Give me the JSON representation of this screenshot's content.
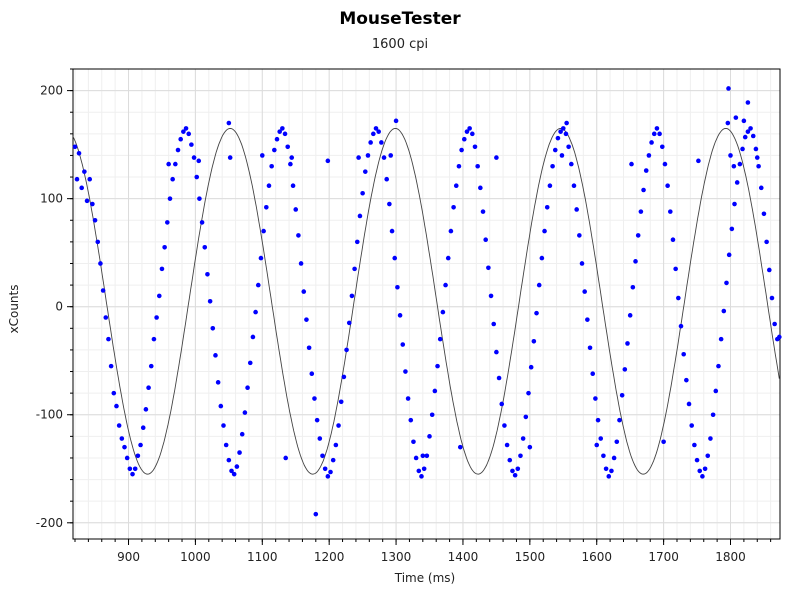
{
  "chart_data": {
    "type": "scatter",
    "title": "MouseTester",
    "subtitle": "1600 cpi",
    "xlabel": "Time (ms)",
    "ylabel": "xCounts",
    "xlim": [
      817,
      1874
    ],
    "ylim": [
      -215,
      220
    ],
    "x_ticks": [
      900,
      1000,
      1100,
      1200,
      1300,
      1400,
      1500,
      1600,
      1700,
      1800
    ],
    "y_ticks": [
      200,
      100,
      0,
      -100,
      -200
    ],
    "grid": true,
    "series": [
      {
        "kind": "points",
        "color": "#0000ff",
        "points": [
          [
            820,
            148
          ],
          [
            823,
            118
          ],
          [
            826,
            142
          ],
          [
            830,
            110
          ],
          [
            834,
            125
          ],
          [
            838,
            98
          ],
          [
            842,
            118
          ],
          [
            846,
            95
          ],
          [
            850,
            80
          ],
          [
            854,
            60
          ],
          [
            858,
            40
          ],
          [
            862,
            15
          ],
          [
            866,
            -10
          ],
          [
            870,
            -30
          ],
          [
            874,
            -55
          ],
          [
            878,
            -80
          ],
          [
            882,
            -92
          ],
          [
            886,
            -110
          ],
          [
            890,
            -122
          ],
          [
            894,
            -130
          ],
          [
            898,
            -140
          ],
          [
            902,
            -150
          ],
          [
            906,
            -155
          ],
          [
            910,
            -150
          ],
          [
            914,
            -138
          ],
          [
            918,
            -128
          ],
          [
            922,
            -112
          ],
          [
            926,
            -95
          ],
          [
            930,
            -75
          ],
          [
            934,
            -55
          ],
          [
            938,
            -30
          ],
          [
            942,
            -10
          ],
          [
            946,
            10
          ],
          [
            950,
            35
          ],
          [
            954,
            55
          ],
          [
            958,
            78
          ],
          [
            962,
            100
          ],
          [
            966,
            118
          ],
          [
            970,
            132
          ],
          [
            974,
            145
          ],
          [
            978,
            155
          ],
          [
            982,
            162
          ],
          [
            986,
            165
          ],
          [
            990,
            160
          ],
          [
            994,
            150
          ],
          [
            998,
            138
          ],
          [
            1002,
            120
          ],
          [
            1006,
            100
          ],
          [
            1010,
            78
          ],
          [
            1014,
            55
          ],
          [
            1018,
            30
          ],
          [
            1022,
            5
          ],
          [
            1026,
            -20
          ],
          [
            1030,
            -45
          ],
          [
            1034,
            -70
          ],
          [
            1038,
            -92
          ],
          [
            1042,
            -110
          ],
          [
            1046,
            -128
          ],
          [
            1050,
            -142
          ],
          [
            1054,
            -152
          ],
          [
            1058,
            -155
          ],
          [
            1062,
            -148
          ],
          [
            1066,
            -135
          ],
          [
            1070,
            -118
          ],
          [
            1074,
            -98
          ],
          [
            1078,
            -75
          ],
          [
            1082,
            -52
          ],
          [
            1086,
            -28
          ],
          [
            1090,
            -5
          ],
          [
            1094,
            20
          ],
          [
            1098,
            45
          ],
          [
            1102,
            70
          ],
          [
            1106,
            92
          ],
          [
            1110,
            112
          ],
          [
            1114,
            130
          ],
          [
            1118,
            145
          ],
          [
            1122,
            155
          ],
          [
            1126,
            162
          ],
          [
            1130,
            165
          ],
          [
            1134,
            160
          ],
          [
            1138,
            148
          ],
          [
            1142,
            132
          ],
          [
            1146,
            112
          ],
          [
            1150,
            90
          ],
          [
            1154,
            66
          ],
          [
            1158,
            40
          ],
          [
            1162,
            14
          ],
          [
            1166,
            -12
          ],
          [
            1170,
            -38
          ],
          [
            1174,
            -62
          ],
          [
            1178,
            -85
          ],
          [
            1182,
            -105
          ],
          [
            1186,
            -122
          ],
          [
            1190,
            -138
          ],
          [
            1194,
            -150
          ],
          [
            1198,
            -157
          ],
          [
            1202,
            -153
          ],
          [
            1206,
            -142
          ],
          [
            1210,
            -128
          ],
          [
            1214,
            -110
          ],
          [
            1218,
            -88
          ],
          [
            1222,
            -65
          ],
          [
            1226,
            -40
          ],
          [
            1230,
            -15
          ],
          [
            1234,
            10
          ],
          [
            1238,
            35
          ],
          [
            1242,
            60
          ],
          [
            1246,
            84
          ],
          [
            1250,
            105
          ],
          [
            1254,
            125
          ],
          [
            1258,
            140
          ],
          [
            1262,
            152
          ],
          [
            1266,
            160
          ],
          [
            1270,
            165
          ],
          [
            1274,
            162
          ],
          [
            1278,
            152
          ],
          [
            1282,
            138
          ],
          [
            1286,
            118
          ],
          [
            1290,
            95
          ],
          [
            1294,
            70
          ],
          [
            1298,
            45
          ],
          [
            1302,
            18
          ],
          [
            1306,
            -8
          ],
          [
            1310,
            -35
          ],
          [
            1314,
            -60
          ],
          [
            1318,
            -85
          ],
          [
            1322,
            -105
          ],
          [
            1326,
            -125
          ],
          [
            1330,
            -140
          ],
          [
            1334,
            -152
          ],
          [
            1338,
            -157
          ],
          [
            1342,
            -150
          ],
          [
            1346,
            -138
          ],
          [
            1350,
            -120
          ],
          [
            1354,
            -100
          ],
          [
            1358,
            -78
          ],
          [
            1362,
            -55
          ],
          [
            1366,
            -30
          ],
          [
            1370,
            -5
          ],
          [
            1374,
            20
          ],
          [
            1378,
            45
          ],
          [
            1382,
            70
          ],
          [
            1386,
            92
          ],
          [
            1390,
            112
          ],
          [
            1394,
            130
          ],
          [
            1398,
            145
          ],
          [
            1402,
            155
          ],
          [
            1406,
            162
          ],
          [
            1410,
            165
          ],
          [
            1414,
            160
          ],
          [
            1418,
            148
          ],
          [
            1422,
            130
          ],
          [
            1426,
            110
          ],
          [
            1430,
            88
          ],
          [
            1434,
            62
          ],
          [
            1438,
            36
          ],
          [
            1442,
            10
          ],
          [
            1446,
            -16
          ],
          [
            1450,
            -42
          ],
          [
            1454,
            -66
          ],
          [
            1458,
            -90
          ],
          [
            1462,
            -110
          ],
          [
            1466,
            -128
          ],
          [
            1470,
            -142
          ],
          [
            1474,
            -152
          ],
          [
            1478,
            -156
          ],
          [
            1482,
            -150
          ],
          [
            1486,
            -138
          ],
          [
            1490,
            -122
          ],
          [
            1494,
            -102
          ],
          [
            1498,
            -80
          ],
          [
            1502,
            -56
          ],
          [
            1506,
            -32
          ],
          [
            1510,
            -6
          ],
          [
            1514,
            20
          ],
          [
            1518,
            45
          ],
          [
            1522,
            70
          ],
          [
            1526,
            92
          ],
          [
            1530,
            112
          ],
          [
            1534,
            130
          ],
          [
            1538,
            145
          ],
          [
            1542,
            156
          ],
          [
            1546,
            162
          ],
          [
            1550,
            165
          ],
          [
            1554,
            160
          ],
          [
            1558,
            148
          ],
          [
            1562,
            132
          ],
          [
            1566,
            112
          ],
          [
            1570,
            90
          ],
          [
            1574,
            66
          ],
          [
            1578,
            40
          ],
          [
            1582,
            14
          ],
          [
            1586,
            -12
          ],
          [
            1590,
            -38
          ],
          [
            1594,
            -62
          ],
          [
            1598,
            -85
          ],
          [
            1602,
            -105
          ],
          [
            1606,
            -122
          ],
          [
            1610,
            -138
          ],
          [
            1614,
            -150
          ],
          [
            1618,
            -157
          ],
          [
            1622,
            -152
          ],
          [
            1626,
            -140
          ],
          [
            1630,
            -125
          ],
          [
            1634,
            -105
          ],
          [
            1638,
            -82
          ],
          [
            1642,
            -58
          ],
          [
            1646,
            -34
          ],
          [
            1650,
            -8
          ],
          [
            1654,
            18
          ],
          [
            1658,
            42
          ],
          [
            1662,
            66
          ],
          [
            1666,
            88
          ],
          [
            1670,
            108
          ],
          [
            1674,
            126
          ],
          [
            1678,
            140
          ],
          [
            1682,
            152
          ],
          [
            1686,
            160
          ],
          [
            1690,
            165
          ],
          [
            1694,
            160
          ],
          [
            1698,
            148
          ],
          [
            1702,
            132
          ],
          [
            1706,
            112
          ],
          [
            1710,
            88
          ],
          [
            1714,
            62
          ],
          [
            1718,
            35
          ],
          [
            1722,
            8
          ],
          [
            1726,
            -18
          ],
          [
            1730,
            -44
          ],
          [
            1734,
            -68
          ],
          [
            1738,
            -90
          ],
          [
            1742,
            -110
          ],
          [
            1746,
            -128
          ],
          [
            1750,
            -142
          ],
          [
            1754,
            -152
          ],
          [
            1758,
            -157
          ],
          [
            1762,
            -150
          ],
          [
            1766,
            -138
          ],
          [
            1770,
            -122
          ],
          [
            1774,
            -100
          ],
          [
            1778,
            -78
          ],
          [
            1782,
            -55
          ],
          [
            1786,
            -30
          ],
          [
            1790,
            -4
          ],
          [
            1794,
            22
          ],
          [
            1798,
            48
          ],
          [
            1802,
            72
          ],
          [
            1806,
            95
          ],
          [
            1810,
            115
          ],
          [
            1814,
            132
          ],
          [
            1818,
            146
          ],
          [
            1822,
            157
          ],
          [
            1826,
            162
          ],
          [
            1830,
            165
          ],
          [
            1834,
            158
          ],
          [
            1838,
            146
          ],
          [
            1842,
            130
          ],
          [
            1846,
            110
          ],
          [
            1850,
            86
          ],
          [
            1854,
            60
          ],
          [
            1858,
            34
          ],
          [
            1862,
            8
          ],
          [
            1866,
            -16
          ],
          [
            1870,
            -30
          ],
          [
            1873,
            -28
          ],
          [
            960,
            132
          ],
          [
            1005,
            135
          ],
          [
            1052,
            138
          ],
          [
            1100,
            140
          ],
          [
            1144,
            138
          ],
          [
            1198,
            135
          ],
          [
            1244,
            138
          ],
          [
            1292,
            140
          ],
          [
            1340,
            -138
          ],
          [
            1396,
            -130
          ],
          [
            1450,
            138
          ],
          [
            1500,
            -130
          ],
          [
            1548,
            140
          ],
          [
            1600,
            -128
          ],
          [
            1652,
            132
          ],
          [
            1700,
            -125
          ],
          [
            1752,
            135
          ],
          [
            1800,
            140
          ],
          [
            1805,
            130
          ],
          [
            1840,
            138
          ],
          [
            1180,
            -192
          ],
          [
            1135,
            -140
          ],
          [
            1797,
            202
          ],
          [
            1826,
            189
          ],
          [
            1808,
            175
          ],
          [
            1820,
            172
          ],
          [
            1050,
            170
          ],
          [
            1300,
            172
          ],
          [
            1555,
            170
          ],
          [
            1796,
            170
          ]
        ]
      },
      {
        "kind": "fit-line",
        "color": "#444444",
        "amplitude": 160,
        "offset": 5,
        "period_ms": 247,
        "phase_peak_ms": 1052
      }
    ]
  }
}
